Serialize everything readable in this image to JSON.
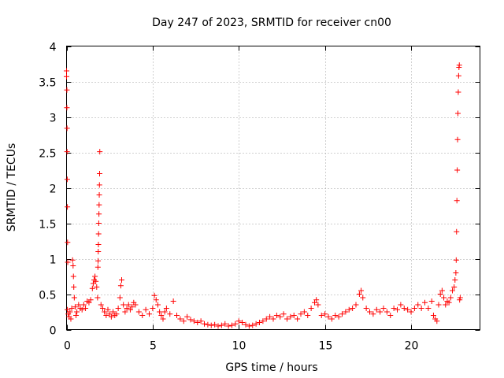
{
  "chart_data": {
    "type": "scatter",
    "title": "Day 247 of 2023, SRMTID for receiver cn00",
    "xlabel": "GPS time / hours",
    "ylabel": "SRMTID / TECUs",
    "xlim": [
      0,
      24
    ],
    "ylim": [
      0,
      4
    ],
    "xticks": [
      0,
      5,
      10,
      15,
      20
    ],
    "yticks": [
      0,
      0.5,
      1,
      1.5,
      2,
      2.5,
      3,
      3.5,
      4
    ],
    "xtick_labels": [
      "0",
      "5",
      "10",
      "15",
      "20"
    ],
    "ytick_labels": [
      "0",
      "0.5",
      "1",
      "1.5",
      "2",
      "2.5",
      "3",
      "3.5",
      "4"
    ],
    "grid": true,
    "marker": "plus",
    "color": "#ff0000",
    "series": [
      {
        "name": "SRMTID",
        "points": [
          [
            0.0,
            3.65
          ],
          [
            0.0,
            3.57
          ],
          [
            0.02,
            3.38
          ],
          [
            0.02,
            3.13
          ],
          [
            0.03,
            2.84
          ],
          [
            0.03,
            2.51
          ],
          [
            0.04,
            2.12
          ],
          [
            0.05,
            1.73
          ],
          [
            0.06,
            1.23
          ],
          [
            0.07,
            0.95
          ],
          [
            0.05,
            0.28
          ],
          [
            0.1,
            0.22
          ],
          [
            0.15,
            0.18
          ],
          [
            0.2,
            0.25
          ],
          [
            0.25,
            0.15
          ],
          [
            0.3,
            0.3
          ],
          [
            0.35,
            0.98
          ],
          [
            0.38,
            0.9
          ],
          [
            0.4,
            0.75
          ],
          [
            0.42,
            0.6
          ],
          [
            0.45,
            0.45
          ],
          [
            0.5,
            0.32
          ],
          [
            0.55,
            0.2
          ],
          [
            0.6,
            0.25
          ],
          [
            0.7,
            0.35
          ],
          [
            0.8,
            0.3
          ],
          [
            0.9,
            0.28
          ],
          [
            1.0,
            0.35
          ],
          [
            1.1,
            0.3
          ],
          [
            1.2,
            0.4
          ],
          [
            1.3,
            0.38
          ],
          [
            1.4,
            0.42
          ],
          [
            1.5,
            0.58
          ],
          [
            1.55,
            0.65
          ],
          [
            1.6,
            0.7
          ],
          [
            1.65,
            0.75
          ],
          [
            1.7,
            0.68
          ],
          [
            1.75,
            0.6
          ],
          [
            1.8,
            0.45
          ],
          [
            1.82,
            0.88
          ],
          [
            1.83,
            0.97
          ],
          [
            1.84,
            1.1
          ],
          [
            1.85,
            1.2
          ],
          [
            1.86,
            1.35
          ],
          [
            1.87,
            1.5
          ],
          [
            1.88,
            1.63
          ],
          [
            1.89,
            1.76
          ],
          [
            1.9,
            1.9
          ],
          [
            1.91,
            2.04
          ],
          [
            1.92,
            2.2
          ],
          [
            1.93,
            2.51
          ],
          [
            2.0,
            0.35
          ],
          [
            2.1,
            0.3
          ],
          [
            2.2,
            0.25
          ],
          [
            2.3,
            0.2
          ],
          [
            2.4,
            0.28
          ],
          [
            2.5,
            0.22
          ],
          [
            2.6,
            0.18
          ],
          [
            2.7,
            0.25
          ],
          [
            2.8,
            0.2
          ],
          [
            2.9,
            0.22
          ],
          [
            3.0,
            0.3
          ],
          [
            3.1,
            0.45
          ],
          [
            3.15,
            0.62
          ],
          [
            3.2,
            0.7
          ],
          [
            3.3,
            0.35
          ],
          [
            3.4,
            0.25
          ],
          [
            3.5,
            0.3
          ],
          [
            3.6,
            0.35
          ],
          [
            3.7,
            0.28
          ],
          [
            3.8,
            0.32
          ],
          [
            3.9,
            0.38
          ],
          [
            4.0,
            0.35
          ],
          [
            4.2,
            0.25
          ],
          [
            4.4,
            0.2
          ],
          [
            4.6,
            0.28
          ],
          [
            4.8,
            0.22
          ],
          [
            5.0,
            0.3
          ],
          [
            5.1,
            0.48
          ],
          [
            5.2,
            0.42
          ],
          [
            5.3,
            0.35
          ],
          [
            5.4,
            0.25
          ],
          [
            5.5,
            0.2
          ],
          [
            5.6,
            0.15
          ],
          [
            5.7,
            0.25
          ],
          [
            5.8,
            0.3
          ],
          [
            6.0,
            0.22
          ],
          [
            6.2,
            0.4
          ],
          [
            6.4,
            0.2
          ],
          [
            6.6,
            0.15
          ],
          [
            6.8,
            0.12
          ],
          [
            7.0,
            0.18
          ],
          [
            7.2,
            0.14
          ],
          [
            7.4,
            0.12
          ],
          [
            7.6,
            0.1
          ],
          [
            7.8,
            0.12
          ],
          [
            8.0,
            0.08
          ],
          [
            8.2,
            0.07
          ],
          [
            8.4,
            0.06
          ],
          [
            8.6,
            0.07
          ],
          [
            8.8,
            0.05
          ],
          [
            9.0,
            0.06
          ],
          [
            9.2,
            0.08
          ],
          [
            9.4,
            0.05
          ],
          [
            9.6,
            0.06
          ],
          [
            9.8,
            0.08
          ],
          [
            10.0,
            0.12
          ],
          [
            10.2,
            0.1
          ],
          [
            10.4,
            0.07
          ],
          [
            10.6,
            0.05
          ],
          [
            10.8,
            0.06
          ],
          [
            11.0,
            0.08
          ],
          [
            11.2,
            0.1
          ],
          [
            11.4,
            0.12
          ],
          [
            11.6,
            0.15
          ],
          [
            11.8,
            0.18
          ],
          [
            12.0,
            0.15
          ],
          [
            12.2,
            0.2
          ],
          [
            12.4,
            0.18
          ],
          [
            12.6,
            0.22
          ],
          [
            12.8,
            0.15
          ],
          [
            13.0,
            0.18
          ],
          [
            13.2,
            0.2
          ],
          [
            13.4,
            0.15
          ],
          [
            13.6,
            0.22
          ],
          [
            13.8,
            0.25
          ],
          [
            14.0,
            0.2
          ],
          [
            14.2,
            0.3
          ],
          [
            14.4,
            0.38
          ],
          [
            14.5,
            0.42
          ],
          [
            14.6,
            0.35
          ],
          [
            14.8,
            0.2
          ],
          [
            15.0,
            0.22
          ],
          [
            15.2,
            0.18
          ],
          [
            15.4,
            0.15
          ],
          [
            15.6,
            0.2
          ],
          [
            15.8,
            0.18
          ],
          [
            16.0,
            0.22
          ],
          [
            16.2,
            0.25
          ],
          [
            16.4,
            0.28
          ],
          [
            16.6,
            0.3
          ],
          [
            16.8,
            0.35
          ],
          [
            17.0,
            0.5
          ],
          [
            17.1,
            0.55
          ],
          [
            17.2,
            0.45
          ],
          [
            17.4,
            0.3
          ],
          [
            17.6,
            0.25
          ],
          [
            17.8,
            0.22
          ],
          [
            18.0,
            0.28
          ],
          [
            18.2,
            0.25
          ],
          [
            18.4,
            0.3
          ],
          [
            18.6,
            0.25
          ],
          [
            18.8,
            0.2
          ],
          [
            19.0,
            0.3
          ],
          [
            19.2,
            0.28
          ],
          [
            19.4,
            0.35
          ],
          [
            19.6,
            0.3
          ],
          [
            19.8,
            0.28
          ],
          [
            20.0,
            0.25
          ],
          [
            20.2,
            0.3
          ],
          [
            20.4,
            0.35
          ],
          [
            20.6,
            0.3
          ],
          [
            20.8,
            0.38
          ],
          [
            21.0,
            0.3
          ],
          [
            21.2,
            0.4
          ],
          [
            21.3,
            0.2
          ],
          [
            21.4,
            0.15
          ],
          [
            21.5,
            0.12
          ],
          [
            21.6,
            0.35
          ],
          [
            21.7,
            0.5
          ],
          [
            21.8,
            0.55
          ],
          [
            21.9,
            0.45
          ],
          [
            22.0,
            0.35
          ],
          [
            22.1,
            0.4
          ],
          [
            22.2,
            0.38
          ],
          [
            22.3,
            0.45
          ],
          [
            22.4,
            0.55
          ],
          [
            22.5,
            0.6
          ],
          [
            22.55,
            0.7
          ],
          [
            22.6,
            0.8
          ],
          [
            22.62,
            0.98
          ],
          [
            22.64,
            1.38
          ],
          [
            22.66,
            1.82
          ],
          [
            22.68,
            2.25
          ],
          [
            22.7,
            2.68
          ],
          [
            22.72,
            3.05
          ],
          [
            22.74,
            3.35
          ],
          [
            22.76,
            3.58
          ],
          [
            22.78,
            3.7
          ],
          [
            22.8,
            3.73
          ],
          [
            22.82,
            0.42
          ],
          [
            22.85,
            0.45
          ]
        ]
      }
    ]
  }
}
